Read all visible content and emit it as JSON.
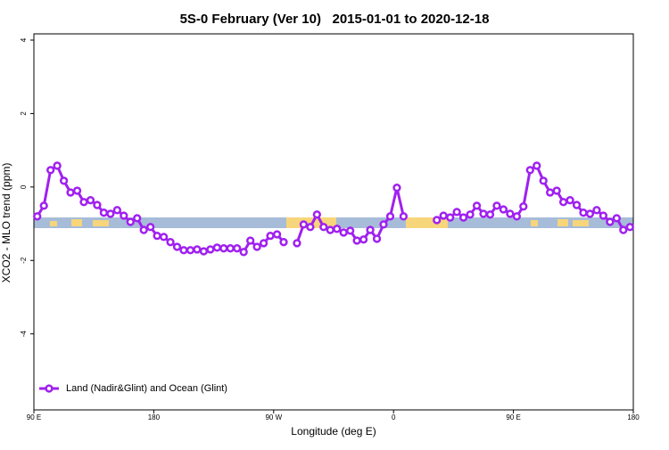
{
  "chart_data": {
    "type": "line",
    "title": "5S-0 February (Ver 10)   2015-01-01 to 2020-12-18",
    "x_label": "Longitude (deg E)",
    "y_label": "XCO2 - MLO trend (ppm)",
    "x": [
      92.5,
      97.5,
      102.5,
      107.5,
      112.5,
      117.5,
      122.5,
      127.5,
      132.5,
      137.5,
      142.5,
      147.5,
      152.5,
      157.5,
      162.5,
      167.5,
      172.5,
      177.5,
      182.5,
      187.5,
      192.5,
      197.5,
      202.5,
      207.5,
      212.5,
      217.5,
      222.5,
      227.5,
      232.5,
      237.5,
      242.5,
      247.5,
      252.5,
      257.5,
      262.5,
      267.5,
      272.5,
      277.5,
      282.5,
      287.5,
      292.5,
      297.5,
      302.5,
      307.5,
      312.5,
      317.5,
      322.5,
      327.5,
      332.5,
      337.5,
      342.5,
      347.5,
      352.5,
      357.5,
      362.5,
      367.5,
      372.5,
      377.5,
      382.5,
      387.5,
      392.5,
      397.5,
      402.5,
      407.5,
      412.5,
      417.5,
      422.5,
      427.5,
      432.5,
      437.5,
      442.5,
      447.5,
      452.5,
      457.5,
      462.5,
      467.5,
      472.5,
      477.5,
      482.5,
      487.5,
      492.5,
      497.5,
      502.5,
      507.5,
      512.5,
      517.5,
      522.5,
      527.5,
      532.5,
      537.5
    ],
    "series": [
      {
        "name": "Land (Nadir&Glint) and Ocean (Glint)",
        "color": "#a020f0",
        "values": [
          -0.8,
          -0.51,
          0.46,
          0.58,
          0.17,
          -0.15,
          -0.1,
          -0.41,
          -0.36,
          -0.49,
          -0.7,
          -0.73,
          -0.63,
          -0.78,
          -0.95,
          -0.85,
          -1.17,
          -1.09,
          -1.33,
          -1.36,
          -1.5,
          -1.63,
          -1.72,
          -1.72,
          -1.7,
          -1.75,
          -1.7,
          -1.65,
          -1.67,
          -1.67,
          -1.67,
          -1.77,
          -1.46,
          -1.63,
          -1.53,
          -1.33,
          -1.29,
          -1.5,
          null,
          -1.53,
          -1.02,
          -1.09,
          -0.75,
          -1.09,
          -1.17,
          -1.14,
          -1.24,
          -1.19,
          -1.46,
          -1.43,
          -1.17,
          -1.41,
          -1.02,
          -0.8,
          -0.02,
          -0.8,
          null,
          null,
          null,
          null,
          -0.9,
          -0.78,
          -0.83,
          -0.68,
          -0.83,
          -0.75,
          -0.51,
          -0.73,
          -0.75,
          -0.51,
          -0.61,
          -0.73,
          -0.8,
          -0.53,
          0.46,
          0.58,
          0.17,
          -0.15,
          -0.1,
          -0.41,
          -0.36,
          -0.49,
          -0.7,
          -0.73,
          -0.63,
          -0.78,
          -0.95,
          -0.85,
          -1.17,
          -1.09
        ]
      }
    ],
    "xlim": [
      90,
      540
    ],
    "xticks": [
      {
        "value": 90,
        "label": "90 E"
      },
      180,
      {
        "value": 270,
        "label": "90 W"
      },
      {
        "value": 360,
        "label": "0"
      },
      {
        "value": 450,
        "label": "90 E"
      },
      {
        "value": 540,
        "label": "180"
      }
    ],
    "ylim": [
      -6.07,
      4.17
    ],
    "yticks": [
      4,
      2,
      0,
      -2,
      -4
    ],
    "legend": "bottom-left"
  }
}
